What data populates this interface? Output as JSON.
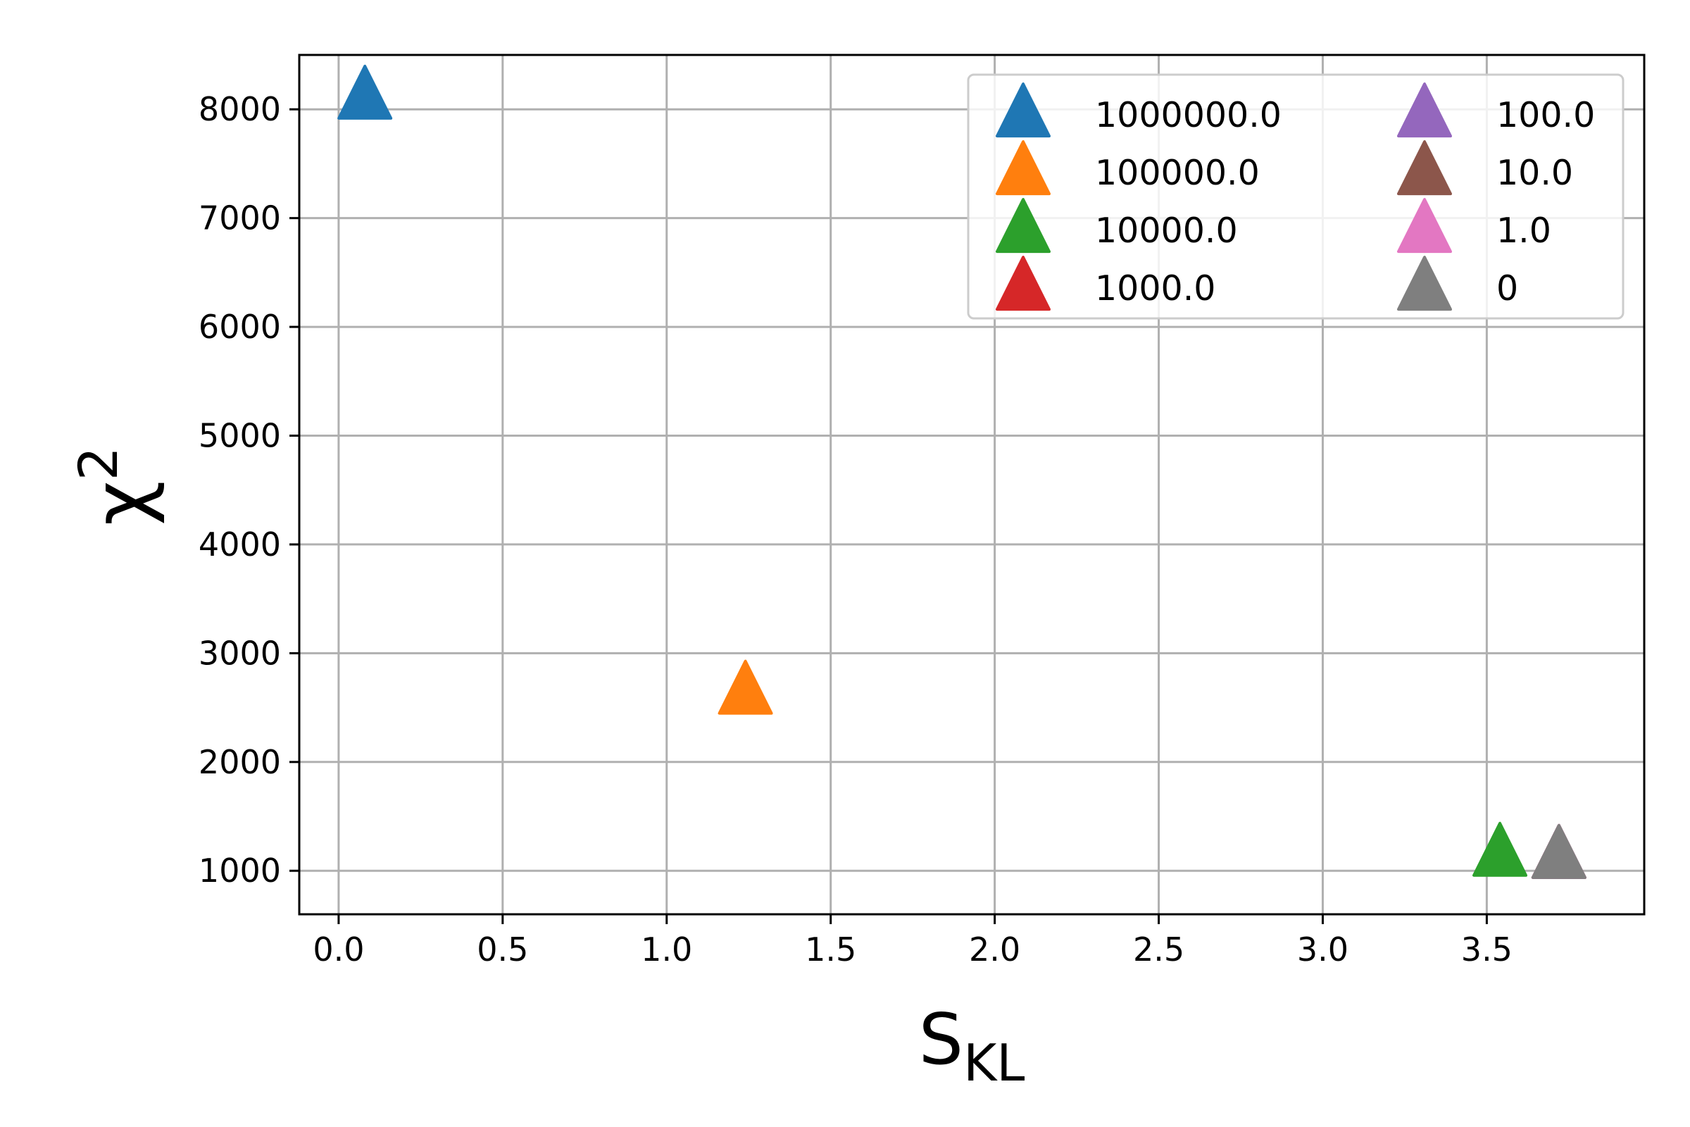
{
  "chart_data": {
    "type": "scatter",
    "xlabel": "S",
    "xlabel_subscript": "KL",
    "ylabel": "χ",
    "ylabel_superscript": "2",
    "xlim": [
      -0.12,
      3.98
    ],
    "ylim": [
      600,
      8500
    ],
    "x_ticks": [
      "0.0",
      "0.5",
      "1.0",
      "1.5",
      "2.0",
      "2.5",
      "3.0",
      "3.5"
    ],
    "y_ticks": [
      "1000",
      "2000",
      "3000",
      "4000",
      "5000",
      "6000",
      "7000",
      "8000"
    ],
    "grid": true,
    "legend": {
      "placement": "top-right",
      "columns": 2
    },
    "marker": "triangle-up",
    "series": [
      {
        "name": "1000000.0",
        "color": "#1f77b4",
        "x": [
          0.08
        ],
        "y": [
          8100
        ]
      },
      {
        "name": "100000.0",
        "color": "#ff7f0e",
        "x": [
          1.24
        ],
        "y": [
          2630
        ]
      },
      {
        "name": "10000.0",
        "color": "#2ca02c",
        "x": [
          3.54
        ],
        "y": [
          1140
        ]
      },
      {
        "name": "1000.0",
        "color": "#d62728",
        "x": [
          3.72
        ],
        "y": [
          1120
        ]
      },
      {
        "name": "100.0",
        "color": "#9467bd",
        "x": [
          3.72
        ],
        "y": [
          1120
        ]
      },
      {
        "name": "10.0",
        "color": "#8c564b",
        "x": [
          3.72
        ],
        "y": [
          1120
        ]
      },
      {
        "name": "1.0",
        "color": "#e377c2",
        "x": [
          3.72
        ],
        "y": [
          1120
        ]
      },
      {
        "name": "0",
        "color": "#7f7f7f",
        "x": [
          3.72
        ],
        "y": [
          1120
        ]
      }
    ]
  }
}
